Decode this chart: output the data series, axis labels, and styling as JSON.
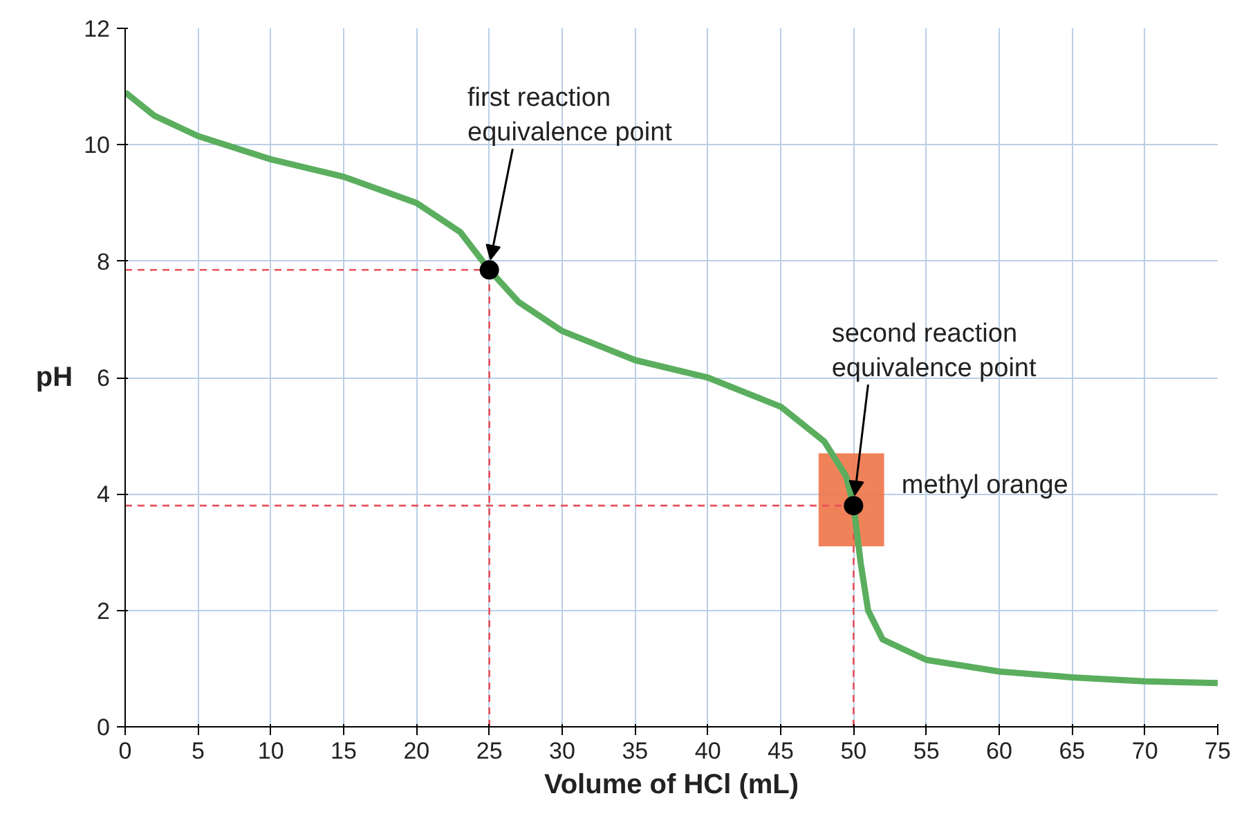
{
  "chart_data": {
    "type": "line",
    "xlabel": "Volume of HCl (mL)",
    "ylabel": "pH",
    "x": [
      0,
      2,
      5,
      10,
      15,
      20,
      23,
      25,
      27,
      30,
      35,
      40,
      45,
      48,
      49.5,
      50,
      50.5,
      51,
      52,
      55,
      60,
      65,
      70,
      75
    ],
    "series": [
      {
        "color": "#5aae5e",
        "values": [
          10.9,
          10.5,
          10.15,
          9.75,
          9.45,
          9.0,
          8.5,
          7.85,
          7.3,
          6.8,
          6.3,
          6.0,
          5.5,
          4.9,
          4.3,
          3.8,
          2.8,
          2.0,
          1.5,
          1.15,
          0.95,
          0.85,
          0.78,
          0.75
        ]
      },
      {
        "type": "scatter",
        "color": "#000000",
        "x": [
          25,
          50
        ],
        "values": [
          7.85,
          3.8
        ],
        "marker": "circle"
      }
    ],
    "ref_lines": [
      {
        "axis": "x",
        "value": 25,
        "color": "#e8505b",
        "line_style": "dashed"
      },
      {
        "axis": "y",
        "value": 7.85,
        "color": "#e8505b",
        "line_style": "dashed"
      },
      {
        "axis": "x",
        "value": 50,
        "color": "#e8505b",
        "line_style": "dashed"
      },
      {
        "axis": "y",
        "value": 3.8,
        "color": "#e8505b",
        "line_style": "dashed"
      }
    ],
    "bands": [
      {
        "axis": "y",
        "from": 3.1,
        "to": 4.7,
        "label": "methyl orange",
        "color": "#ee7448"
      }
    ],
    "annotations": [
      {
        "text": "first reaction\nequivalence point",
        "x": 25,
        "y": 7.85
      },
      {
        "text": "second reaction\nequivalence point",
        "x": 50,
        "y": 3.8
      }
    ],
    "xlim": [
      0,
      75
    ],
    "ylim": [
      0,
      12
    ],
    "xticks": [
      0,
      5,
      10,
      15,
      20,
      25,
      30,
      35,
      40,
      45,
      50,
      55,
      60,
      65,
      70,
      75
    ],
    "yticks": [
      0,
      2,
      4,
      6,
      8,
      10,
      12
    ],
    "grid": true,
    "marker": "none",
    "line_style": "solid"
  }
}
